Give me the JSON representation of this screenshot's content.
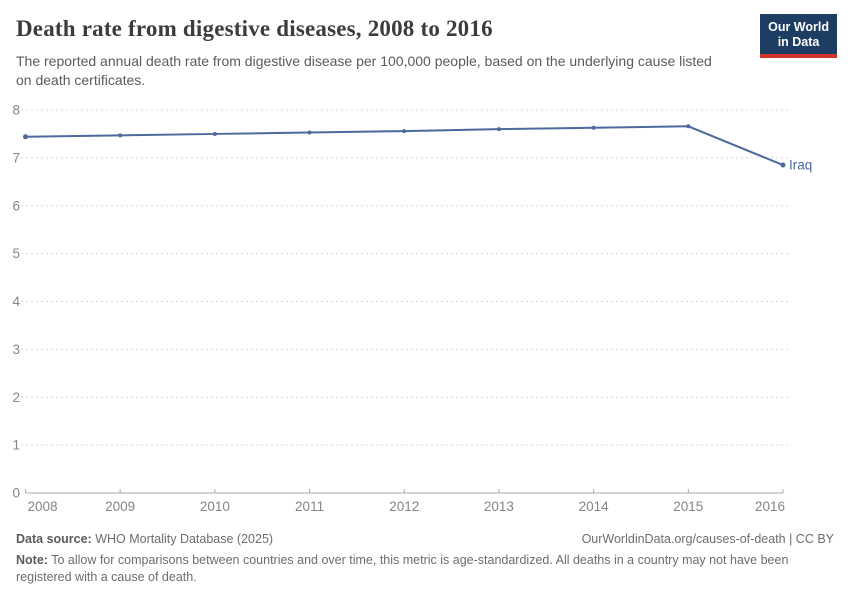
{
  "header": {
    "title": "Death rate from digestive diseases, 2008 to 2016",
    "subtitle": "The reported annual death rate from digestive disease per 100,000 people, based on the underlying cause listed on death certificates.",
    "logo_line1": "Our World",
    "logo_line2": "in Data"
  },
  "chart_data": {
    "type": "line",
    "title": "Death rate from digestive diseases, 2008 to 2016",
    "x": [
      2008,
      2009,
      2010,
      2011,
      2012,
      2013,
      2014,
      2015,
      2016
    ],
    "xticklabels": [
      "2008",
      "2009",
      "2010",
      "2011",
      "2012",
      "2013",
      "2014",
      "2015",
      "2016"
    ],
    "yticks": [
      0,
      1,
      2,
      3,
      4,
      5,
      6,
      7,
      8
    ],
    "ylim": [
      0,
      8
    ],
    "grid": "horizontal-dashed",
    "legend_position": "end-of-line-label",
    "series": [
      {
        "name": "Iraq",
        "color": "#4C6A9C",
        "values": [
          7.44,
          7.47,
          7.5,
          7.53,
          7.56,
          7.6,
          7.63,
          7.66,
          6.85
        ]
      }
    ]
  },
  "colors": {
    "gridline": "#d7d7d7",
    "axis": "#a8a8a8",
    "logo_bg": "#1d3d63",
    "logo_accent": "#d0342c"
  },
  "footer": {
    "datasource_label": "Data source:",
    "datasource_value": "WHO Mortality Database (2025)",
    "attribution": "OurWorldinData.org/causes-of-death | CC BY",
    "note_label": "Note:",
    "note_value": "To allow for comparisons between countries and over time, this metric is age-standardized. All deaths in a country may not have been registered with a cause of death."
  }
}
